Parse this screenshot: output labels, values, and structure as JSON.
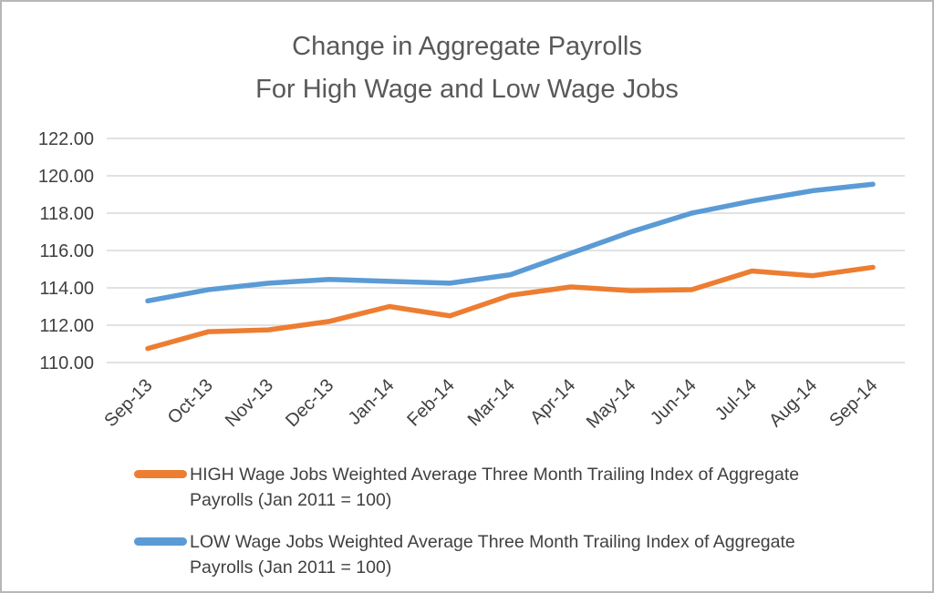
{
  "title": {
    "line1": "Change in Aggregate Payrolls",
    "line2": "For High Wage and Low Wage Jobs"
  },
  "colors": {
    "high": "#ED7D31",
    "low": "#5B9BD5",
    "grid": "#D9D9D9",
    "title_text": "#595959",
    "axis_text": "#404040"
  },
  "legend": [
    {
      "series": "high",
      "label": "HIGH Wage Jobs Weighted Average Three Month Trailing Index of Aggregate Payrolls (Jan 2011 = 100)"
    },
    {
      "series": "low",
      "label": "LOW Wage Jobs Weighted Average Three Month Trailing Index of Aggregate Payrolls (Jan 2011 = 100)"
    }
  ],
  "chart_data": {
    "type": "line",
    "title": "Change in Aggregate Payrolls For High Wage and Low Wage Jobs",
    "categories": [
      "Sep-13",
      "Oct-13",
      "Nov-13",
      "Dec-13",
      "Jan-14",
      "Feb-14",
      "Mar-14",
      "Apr-14",
      "May-14",
      "Jun-14",
      "Jul-14",
      "Aug-14",
      "Sep-14"
    ],
    "series": [
      {
        "name": "HIGH Wage Jobs Weighted Average Three Month Trailing Index of Aggregate Payrolls (Jan 2011 = 100)",
        "color": "#ED7D31",
        "values": [
          110.75,
          111.65,
          111.75,
          112.2,
          113.0,
          112.5,
          113.6,
          114.05,
          113.85,
          113.9,
          114.9,
          114.65,
          115.1
        ]
      },
      {
        "name": "LOW Wage Jobs Weighted Average Three Month Trailing Index of Aggregate Payrolls (Jan 2011 = 100)",
        "color": "#5B9BD5",
        "values": [
          113.3,
          113.9,
          114.25,
          114.45,
          114.35,
          114.25,
          114.7,
          115.85,
          117.0,
          118.0,
          118.65,
          119.2,
          119.55
        ]
      }
    ],
    "xlabel": "",
    "ylabel": "",
    "ylim": [
      110,
      122
    ],
    "ytick_step": 2,
    "ytick_format": "0.00",
    "grid": "horizontal",
    "legend_position": "bottom"
  }
}
